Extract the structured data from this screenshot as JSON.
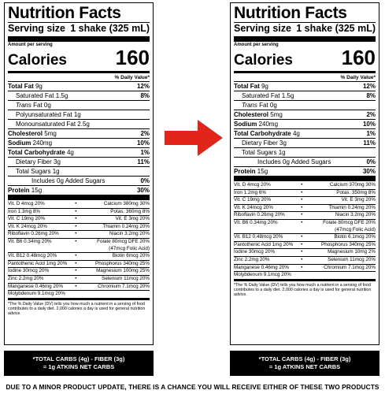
{
  "labels": [
    {
      "title": "Nutrition Facts",
      "serving_size_label": "Serving size",
      "serving_size_value": "1 shake (325 mL)",
      "amount_per_serving": "Amount per serving",
      "calories_label": "Calories",
      "calories_value": "160",
      "dv_header": "% Daily Value*",
      "nutrients": [
        {
          "label": "Total Fat",
          "amount": "9g",
          "dv": "12%"
        },
        {
          "label": "Saturated Fat",
          "amount": "1.5g",
          "dv": "8%"
        },
        {
          "label": "Trans",
          "amount": "Fat 0g",
          "dv": ""
        },
        {
          "label": "Polyunsaturated Fat",
          "amount": "1g",
          "dv": ""
        },
        {
          "label": "Monounsaturated Fat",
          "amount": "2.5g",
          "dv": ""
        },
        {
          "label": "Cholesterol",
          "amount": "5mg",
          "dv": "2%"
        },
        {
          "label": "Sodium",
          "amount": "240mg",
          "dv": "10%"
        },
        {
          "label": "Total Carbohydrate",
          "amount": "4g",
          "dv": "1%"
        },
        {
          "label": "Dietary Fiber",
          "amount": "3g",
          "dv": "11%"
        },
        {
          "label": "Total Sugars",
          "amount": "1g",
          "dv": ""
        },
        {
          "label": "Includes 0g Added Sugars",
          "amount": "",
          "dv": "0%"
        },
        {
          "label": "Protein",
          "amount": "15g",
          "dv": "30%"
        }
      ],
      "vitamins": [
        {
          "left": "Vit. D 4mcg 20%",
          "right": "Calcium 380mg 30%"
        },
        {
          "left": "Iron 1.3mg 8%",
          "right": "Potas. 360mg 8%"
        },
        {
          "left": "Vit. C 19mg 20%",
          "right": "Vit. E 3mg 20%"
        },
        {
          "left": "Vit. K 24mcg 20%",
          "right": "Thiamin 0.24mg 20%"
        },
        {
          "left": "Riboflavin 0.26mg 20%",
          "right": "Niacin 3.2mg 20%"
        },
        {
          "left": "Vit. B6 0.34mg 20%",
          "right": "Folate 80mcg DFE 20%"
        },
        {
          "left": "",
          "right": "(47mcg Folic Acid)"
        },
        {
          "left": "Vit. B12 0.48mcg 20%",
          "right": "Biotin 6mcg 20%"
        },
        {
          "left": "Pantothenic Acid 1mg 20%",
          "right": "Phosphorus 340mg 25%"
        },
        {
          "left": "Iodine 30mcg 20%",
          "right": "Magnesium 100mg 25%"
        },
        {
          "left": "Zinc 2.2mg 20%",
          "right": "Selenium 11mcg 20%"
        },
        {
          "left": "Manganese 0.46mg 20%",
          "right": "Chromium 7.1mcg 20%"
        },
        {
          "left": "Molybdenum 9.1mcg 20%",
          "right": ""
        }
      ],
      "footnote": "*The % Daily Value (DV) tells you how much a nutrient in a serving of food contributes to a daily diet. 2,000 calories a day is used for general nutrition advice.",
      "net_carbs_line1": "*TOTAL CARBS (4g) - FIBER (3g)",
      "net_carbs_line2": "= 1g ATKINS NET CARBS"
    },
    {
      "title": "Nutrition Facts",
      "serving_size_label": "Serving size",
      "serving_size_value": "1 shake (325 mL)",
      "amount_per_serving": "Amount per serving",
      "calories_label": "Calories",
      "calories_value": "160",
      "dv_header": "% Daily Value*",
      "nutrients": [
        {
          "label": "Total Fat",
          "amount": "9g",
          "dv": "12%"
        },
        {
          "label": "Saturated Fat",
          "amount": "1.5g",
          "dv": "8%"
        },
        {
          "label": "Trans",
          "amount": "Fat 0g",
          "dv": ""
        },
        {
          "label": "Cholesterol",
          "amount": "5mg",
          "dv": "2%"
        },
        {
          "label": "Sodium",
          "amount": "240mg",
          "dv": "10%"
        },
        {
          "label": "Total Carbohydrate",
          "amount": "4g",
          "dv": "1%"
        },
        {
          "label": "Dietary Fiber",
          "amount": "3g",
          "dv": "11%"
        },
        {
          "label": "Total Sugars",
          "amount": "1g",
          "dv": ""
        },
        {
          "label": "Includes 0g Added Sugars",
          "amount": "",
          "dv": "0%"
        },
        {
          "label": "Protein",
          "amount": "15g",
          "dv": "30%"
        }
      ],
      "vitamins": [
        {
          "left": "Vit. D 4mcg 20%",
          "right": "Calcium 370mg 30%"
        },
        {
          "left": "Iron 1.2mg 6%",
          "right": "Potas. 350mg 8%"
        },
        {
          "left": "Vit. C 19mg 20%",
          "right": "Vit. E 3mg 20%"
        },
        {
          "left": "Vit. K 24mcg 20%",
          "right": "Thiamin 0.24mg 20%"
        },
        {
          "left": "Riboflavin 0.26mg 20%",
          "right": "Niacin 3.2mg 20%"
        },
        {
          "left": "Vit. B6 0.34mg 20%",
          "right": "Folate 80mcg DFE 20%"
        },
        {
          "left": "",
          "right": "(47mcg Folic Acid)"
        },
        {
          "left": "Vit. B12 0.48mcg 20%",
          "right": "Biotin 6.1mcg 20%"
        },
        {
          "left": "Pantothenic Acid 1mg 20%",
          "right": "Phosphorus 340mg 25%"
        },
        {
          "left": "Iodine 30mcg 20%",
          "right": "Magnesium 10mg 2%"
        },
        {
          "left": "Zinc 2.2mg 20%",
          "right": "Selenium 11mcg 20%"
        },
        {
          "left": "Manganese 0.46mg 20%",
          "right": "Chromium 7.1mcg 20%"
        },
        {
          "left": "Molybdenum 9.1mcg 20%",
          "right": ""
        }
      ],
      "footnote": "*The % Daily Value (DV) tells you how much a nutrient in a serving of food contributes to a daily diet. 2,000 calories a day is used for general nutrition advice.",
      "net_carbs_line1": "*TOTAL CARBS (4g) - FIBER (3g)",
      "net_carbs_line2": "= 1g ATKINS NET CARBS"
    }
  ],
  "arrow_color": "#e1251b",
  "notice": "DUE TO A MINOR PRODUCT UPDATE, THERE IS A CHANCE YOU WILL RECEIVE EITHER OF THESE TWO PRODUCTS"
}
